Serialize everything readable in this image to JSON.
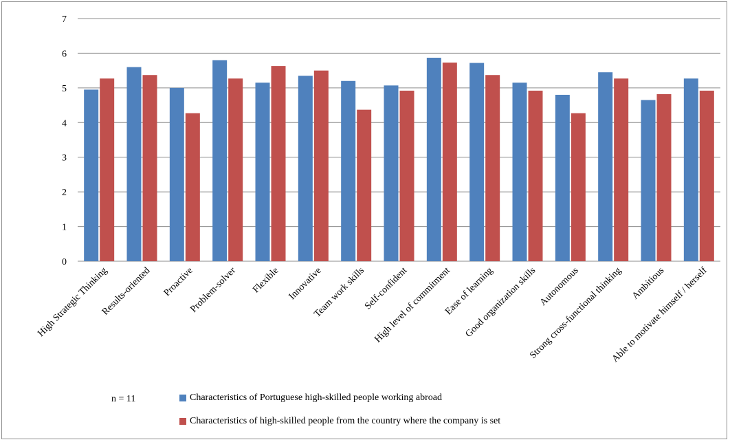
{
  "chart_data": {
    "type": "bar",
    "title": "",
    "xlabel": "",
    "ylabel": "",
    "ylim": [
      0,
      7
    ],
    "yticks": [
      0,
      1,
      2,
      3,
      4,
      5,
      6,
      7
    ],
    "grid": true,
    "categories": [
      "High Strategic Thinking",
      "Results-oriented",
      "Proactive",
      "Problem-solver",
      "Flexible",
      "Innovative",
      "Team work skills",
      "Self-confident",
      "High level of commitment",
      "Ease of learning",
      "Good organization skills",
      "Autonomous",
      "Strong cross-functional thinking",
      "Ambitious",
      "Able to motivate himself / herself"
    ],
    "series": [
      {
        "name": "Characteristics of Portuguese high-skilled people working abroad",
        "color": "#4f81bd",
        "values": [
          4.95,
          5.6,
          5.0,
          5.8,
          5.15,
          5.35,
          5.2,
          5.07,
          5.87,
          5.72,
          5.15,
          4.8,
          5.45,
          4.65,
          5.27
        ]
      },
      {
        "name": "Characteristics of high-skilled people from the country where the company is set",
        "color": "#c0504d",
        "values": [
          5.27,
          5.37,
          4.27,
          5.27,
          5.63,
          5.5,
          4.37,
          4.92,
          5.73,
          5.37,
          4.92,
          4.27,
          5.27,
          4.82,
          4.92
        ]
      }
    ],
    "legend_position": "bottom",
    "note": "n = 11"
  }
}
